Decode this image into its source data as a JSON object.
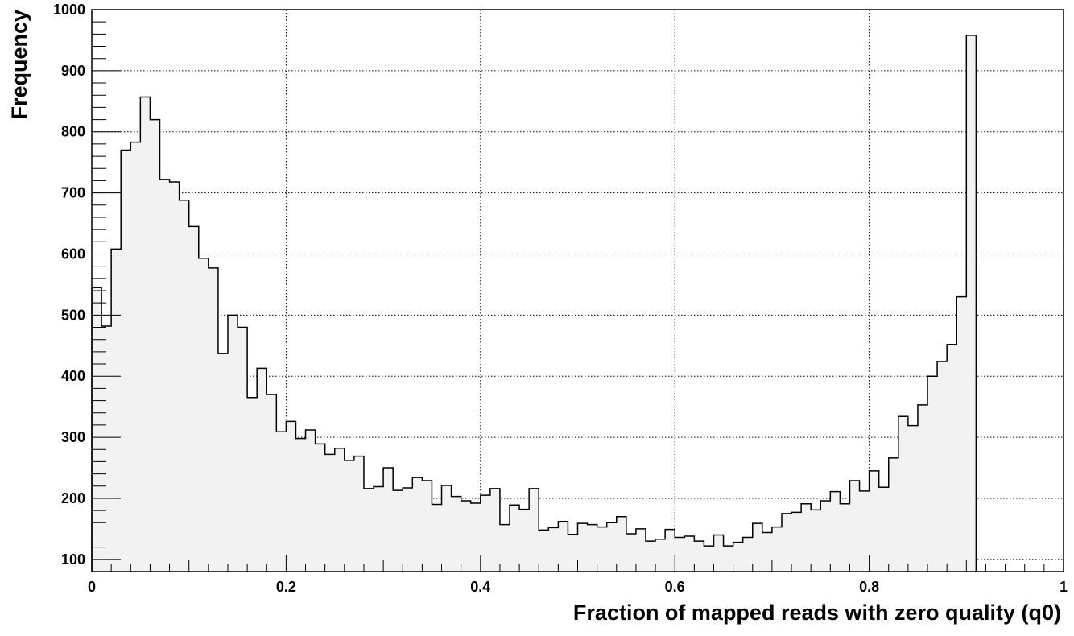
{
  "chart_data": {
    "type": "bar",
    "title": "",
    "xlabel": "Fraction of mapped reads with zero quality (q0)",
    "ylabel": "Frequency",
    "xlim": [
      0,
      1
    ],
    "ylim": [
      80,
      1000
    ],
    "grid": true,
    "bin_width": 0.01,
    "x_ticks": [
      {
        "value": 0,
        "label": "0"
      },
      {
        "value": 0.2,
        "label": "0.2"
      },
      {
        "value": 0.4,
        "label": "0.4"
      },
      {
        "value": 0.6,
        "label": "0.6"
      },
      {
        "value": 0.8,
        "label": "0.8"
      },
      {
        "value": 1,
        "label": "1"
      }
    ],
    "y_ticks": [
      {
        "value": 100,
        "label": "100"
      },
      {
        "value": 200,
        "label": "200"
      },
      {
        "value": 300,
        "label": "300"
      },
      {
        "value": 400,
        "label": "400"
      },
      {
        "value": 500,
        "label": "500"
      },
      {
        "value": 600,
        "label": "600"
      },
      {
        "value": 700,
        "label": "700"
      },
      {
        "value": 800,
        "label": "800"
      },
      {
        "value": 900,
        "label": "900"
      },
      {
        "value": 1000,
        "label": "1000"
      }
    ],
    "values": [
      545,
      482,
      608,
      770,
      783,
      857,
      820,
      722,
      718,
      688,
      645,
      593,
      577,
      437,
      500,
      480,
      365,
      413,
      370,
      309,
      326,
      298,
      312,
      289,
      272,
      282,
      262,
      269,
      216,
      219,
      250,
      213,
      217,
      234,
      229,
      190,
      221,
      203,
      196,
      192,
      205,
      216,
      157,
      189,
      182,
      216,
      148,
      152,
      162,
      141,
      159,
      157,
      153,
      160,
      170,
      142,
      150,
      130,
      133,
      149,
      136,
      138,
      130,
      122,
      140,
      122,
      128,
      136,
      159,
      144,
      153,
      175,
      177,
      191,
      181,
      196,
      211,
      191,
      229,
      212,
      245,
      218,
      266,
      334,
      319,
      353,
      400,
      424,
      452,
      530,
      958
    ],
    "colors": {
      "fill": "#f2f2f2",
      "line": "#000000",
      "grid": "#000000"
    }
  }
}
